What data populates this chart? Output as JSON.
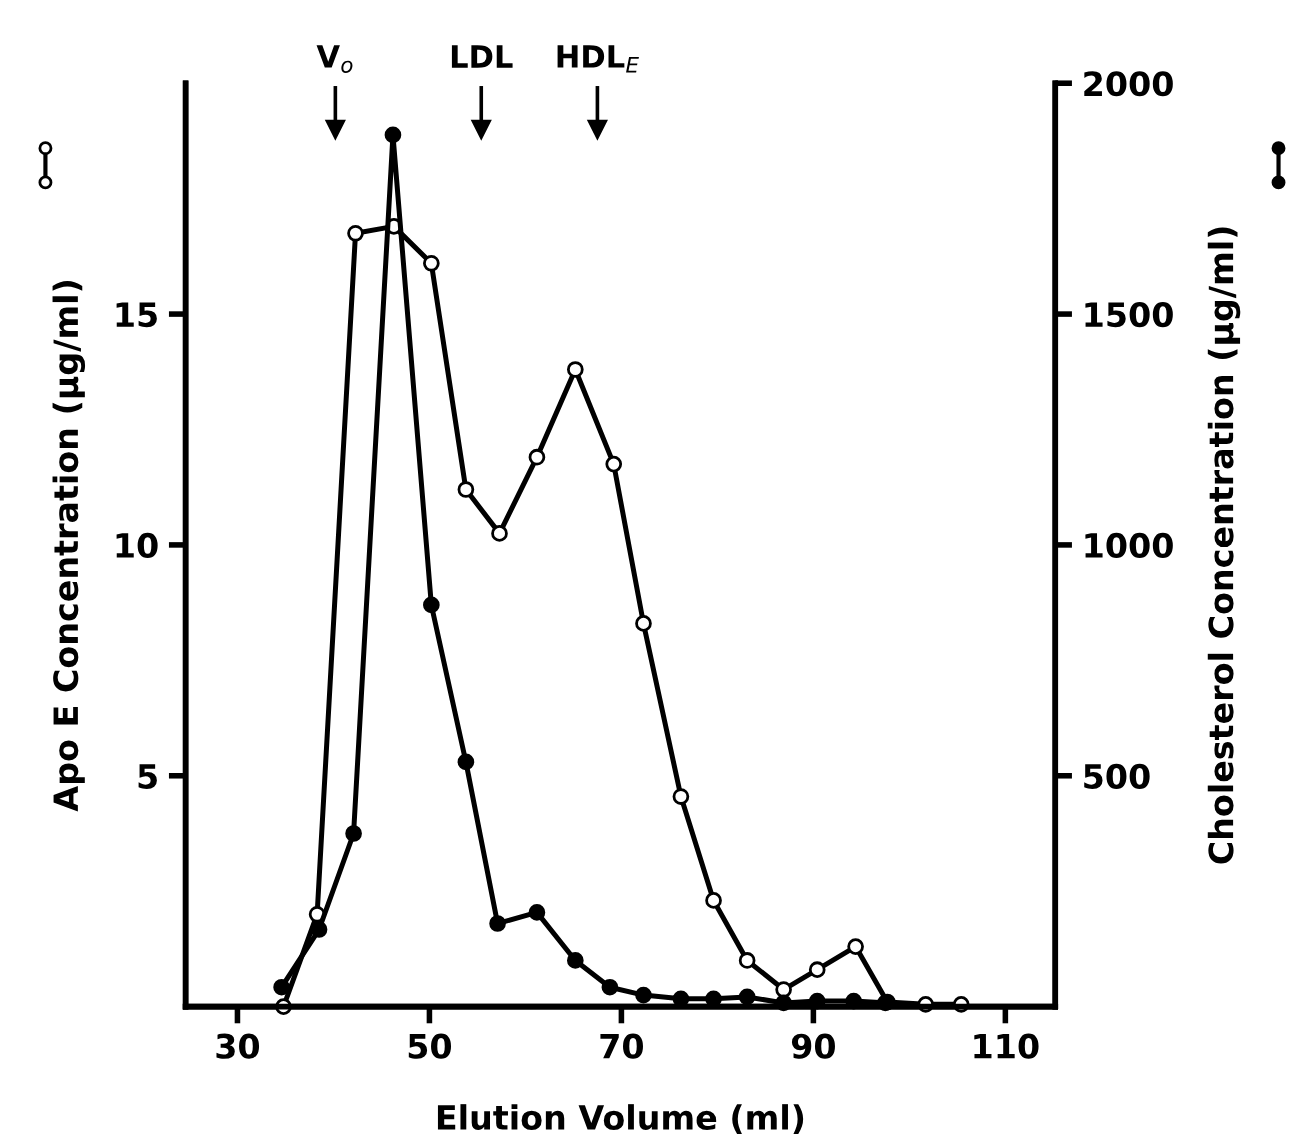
{
  "chart_data": {
    "type": "line",
    "xlabel": "Elution Volume (ml)",
    "ylabel": "Apo E Concentration (µg/ml)",
    "y2label": "Cholesterol Concentration (µg/ml)",
    "xlim": [
      24.6,
      115.2
    ],
    "xticks": [
      30,
      50,
      70,
      90,
      110
    ],
    "ylim": [
      0,
      20
    ],
    "yticks": [
      5,
      10,
      15
    ],
    "y2lim": [
      0,
      2000
    ],
    "y2ticks": [
      500,
      1000,
      1500,
      2000
    ],
    "marker": "circle",
    "line_style": "solid",
    "grid": false,
    "legend": false,
    "series": [
      {
        "color": "#000000",
        "axis": "y",
        "x": [
          34.8,
          38.3,
          42.3,
          46.3,
          50.2,
          53.8,
          57.3,
          61.2,
          65.2,
          69.2,
          72.3,
          76.2,
          79.6,
          83.1,
          86.9,
          90.4,
          94.4,
          97.7,
          101.7,
          105.4
        ],
        "values": [
          0,
          2.0,
          16.75,
          16.9,
          16.1,
          11.2,
          10.25,
          11.9,
          13.8,
          11.75,
          8.3,
          4.55,
          2.3,
          1.0,
          0.37,
          0.8,
          1.3,
          0.1,
          0.05,
          0.05
        ]
      },
      {
        "color": "#000000",
        "axis": "y2",
        "x": [
          34.6,
          38.5,
          42.1,
          46.2,
          50.2,
          53.8,
          57.1,
          61.2,
          65.2,
          68.8,
          72.3,
          76.2,
          79.6,
          83.1,
          86.9,
          90.4,
          94.2,
          97.5
        ],
        "values": [
          42,
          167,
          375,
          1888,
          870,
          530,
          180,
          204,
          100,
          42,
          25,
          17,
          17,
          21,
          8,
          12,
          12,
          8
        ]
      }
    ],
    "ref_lines": [
      {
        "axis": "x",
        "value": 40.2,
        "label": "V$_{o}$"
      },
      {
        "axis": "x",
        "value": 55.4,
        "label": "LDL"
      },
      {
        "axis": "x",
        "value": 67.5,
        "label": "HDL$_{E}$"
      }
    ]
  }
}
